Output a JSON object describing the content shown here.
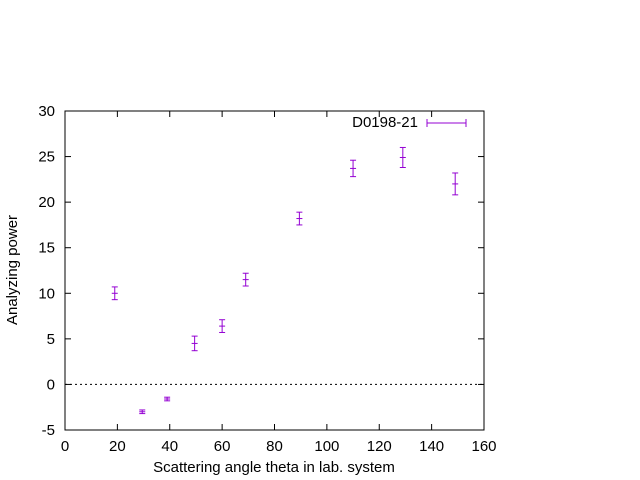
{
  "chart_data": {
    "type": "scatter",
    "title": "",
    "xlabel": "Scattering angle theta in lab. system",
    "ylabel": "Analyzing power",
    "xlim": [
      0,
      160
    ],
    "ylim": [
      -5,
      30
    ],
    "xticks": [
      "0",
      "20",
      "40",
      "60",
      "80",
      "100",
      "120",
      "140",
      "160"
    ],
    "yticks": [
      "-5",
      "0",
      "5",
      "10",
      "15",
      "20",
      "25",
      "30"
    ],
    "grid": false,
    "legend_position": "top-right",
    "reference_line": {
      "y": 0,
      "style": "dotted"
    },
    "series": [
      {
        "name": "D0198-21",
        "color": "#9400d3",
        "points": [
          {
            "x": 19,
            "y": 10.0,
            "err": 0.7
          },
          {
            "x": 29.5,
            "y": -3.0,
            "err": 0.2
          },
          {
            "x": 39,
            "y": -1.6,
            "err": 0.2
          },
          {
            "x": 49.5,
            "y": 4.5,
            "err": 0.8
          },
          {
            "x": 60,
            "y": 6.4,
            "err": 0.7
          },
          {
            "x": 69,
            "y": 11.5,
            "err": 0.7
          },
          {
            "x": 89.5,
            "y": 18.2,
            "err": 0.7
          },
          {
            "x": 110,
            "y": 23.7,
            "err": 0.9
          },
          {
            "x": 129,
            "y": 24.9,
            "err": 1.1
          },
          {
            "x": 149,
            "y": 22.0,
            "err": 1.2
          }
        ]
      }
    ]
  }
}
